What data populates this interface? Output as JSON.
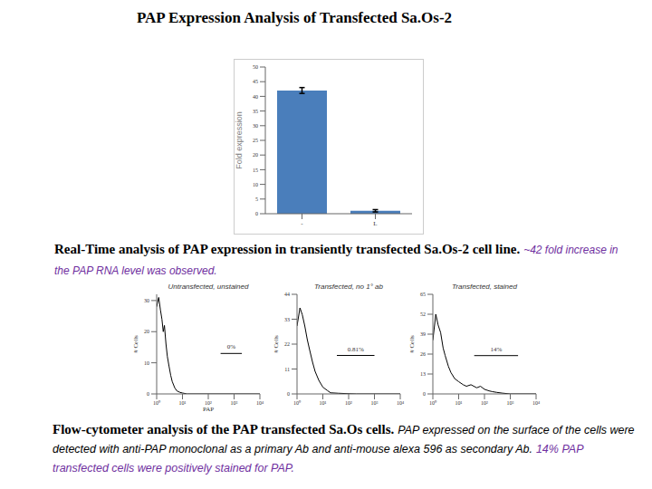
{
  "title": "PAP Expression Analysis of Transfected Sa.Os-2",
  "caption_1": {
    "heading": "Real-Time analysis of PAP expression in transiently transfected Sa.Os-2 cell line.",
    "note": "~42 fold increase in the PAP RNA level was observed."
  },
  "caption_2": {
    "heading": "Flow-cytometer analysis of the PAP transfected Sa.Os cells.",
    "body": "PAP expressed on the surface of the cells were detected with anti-PAP monoclonal as a primary Ab and anti-mouse alexa 596 as secondary Ab.",
    "highlight": "14% PAP transfected cells were positively stained for PAP."
  },
  "chart_data": [
    {
      "type": "bar",
      "categories": [
        "-",
        "L"
      ],
      "values": [
        42,
        1
      ],
      "errors": [
        1,
        0.4
      ],
      "color": "#4a7ebb",
      "ylabel": "Fold expression",
      "ylim": [
        0,
        50
      ],
      "yticks": [
        0,
        5,
        10,
        15,
        20,
        25,
        30,
        35,
        40,
        45,
        50
      ]
    },
    {
      "type": "line",
      "title": "Untransfected, unstained",
      "xlabel": "PAP",
      "ylabel": "# Cells",
      "log": "x",
      "color": "#000000",
      "x": [
        1,
        1.2,
        1.4,
        1.6,
        1.8,
        2,
        2.3,
        2.6,
        3,
        3.5,
        4,
        5,
        6,
        8,
        10,
        15,
        100,
        1000,
        10000
      ],
      "values": [
        28,
        31,
        27,
        24,
        20,
        22,
        16,
        12,
        9,
        6,
        4,
        2,
        1,
        0.5,
        0.3,
        0,
        0,
        0,
        0
      ],
      "xlim": [
        1,
        10000
      ],
      "xticks": [
        {
          "value": 1,
          "label": "10⁰"
        },
        {
          "value": 10,
          "label": "10¹"
        },
        {
          "value": 100,
          "label": "10²"
        },
        {
          "value": 1000,
          "label": "10³"
        },
        {
          "value": 10000,
          "label": "10⁴"
        }
      ],
      "ylim": [
        0,
        32
      ],
      "yticks": [
        0,
        10,
        20,
        30
      ],
      "annotation": {
        "text": "0%",
        "x": [
          300,
          2000
        ],
        "y": 13
      }
    },
    {
      "type": "line",
      "title": "Transfected, no 1° ab",
      "ylabel": "# Cells",
      "log": "x",
      "color": "#000000",
      "x": [
        1,
        1.3,
        1.6,
        2,
        2.5,
        3,
        4,
        5,
        7,
        10,
        15,
        20,
        40,
        100,
        200,
        10000
      ],
      "values": [
        30,
        38,
        35,
        30,
        24,
        20,
        14,
        10,
        6,
        3,
        1.5,
        0.5,
        0.3,
        0.1,
        0,
        0
      ],
      "xlim": [
        1,
        10000
      ],
      "xticks": [
        {
          "value": 1,
          "label": "10⁰"
        },
        {
          "value": 10,
          "label": "10¹"
        },
        {
          "value": 100,
          "label": "10²"
        },
        {
          "value": 1000,
          "label": "10³"
        },
        {
          "value": 10000,
          "label": "10⁴"
        }
      ],
      "ylim": [
        0,
        44
      ],
      "yticks": [
        0,
        11,
        22,
        33,
        44
      ],
      "annotation": {
        "text": "0.81%",
        "x": [
          35,
          1000
        ],
        "y": 17
      }
    },
    {
      "type": "line",
      "title": "Transfected, stained",
      "ylabel": "# Cells",
      "log": "x",
      "color": "#000000",
      "x": [
        1,
        1.3,
        1.6,
        2,
        2.5,
        3,
        4,
        5,
        7,
        10,
        15,
        20,
        30,
        50,
        70,
        100,
        150,
        200,
        300,
        500,
        1000,
        10000
      ],
      "values": [
        35,
        52,
        45,
        40,
        30,
        25,
        18,
        14,
        10,
        8,
        6,
        5,
        6,
        4,
        5,
        3,
        2,
        1.5,
        1,
        0.5,
        0,
        0
      ],
      "xlim": [
        1,
        10000
      ],
      "xticks": [
        {
          "value": 1,
          "label": "10⁰"
        },
        {
          "value": 10,
          "label": "10¹"
        },
        {
          "value": 100,
          "label": "10²"
        },
        {
          "value": 1000,
          "label": "10³"
        },
        {
          "value": 10000,
          "label": "10⁴"
        }
      ],
      "ylim": [
        0,
        65
      ],
      "yticks": [
        0,
        13,
        26,
        39,
        52,
        65
      ],
      "annotation": {
        "text": "14%",
        "x": [
          40,
          2000
        ],
        "y": 25
      }
    }
  ]
}
